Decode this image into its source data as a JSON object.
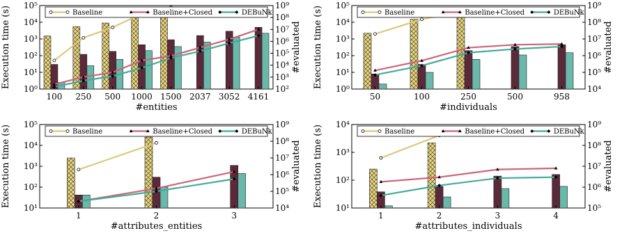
{
  "legend": {
    "baseline": "Baseline",
    "closed": "Baseline+Closed",
    "debunk": "DEBuNk"
  },
  "colors": {
    "baseline_bar": "#e8d98a",
    "baseline_line": "#ddc97a",
    "closed": "#5b2a3a",
    "closed_line": "#cc6677",
    "debunk": "#6ab8aa",
    "debunk_line": "#44aa99"
  },
  "chart_data": [
    {
      "type": "bar",
      "xlabel": "#entities",
      "ylabel": "Execution time (s)",
      "y2label": "#evaluated",
      "categories": [
        "100",
        "250",
        "500",
        "1000",
        "1500",
        "2037",
        "3052",
        "4161"
      ],
      "ylim_exp": [
        0,
        5
      ],
      "y2lim_exp": [
        2,
        9
      ],
      "series_bars": [
        {
          "name": "Baseline",
          "values": [
            1500,
            5500,
            9000,
            25000,
            25000,
            null,
            null,
            null
          ]
        },
        {
          "name": "Baseline+Closed",
          "values": [
            30,
            120,
            180,
            450,
            900,
            1600,
            2900,
            5000
          ]
        },
        {
          "name": "DEBuNk",
          "values": [
            2.5,
            25,
            60,
            200,
            350,
            650,
            1300,
            2200
          ]
        }
      ],
      "series_lines": [
        {
          "name": "Baseline",
          "values": [
            25000,
            2000000,
            15000000,
            200000000,
            700000000,
            null,
            null,
            null
          ]
        },
        {
          "name": "Baseline+Closed",
          "values": [
            250,
            1000,
            2500,
            25000,
            60000,
            300000,
            1500000,
            10000000
          ]
        },
        {
          "name": "DEBuNk",
          "values": [
            150,
            500,
            1200,
            6000,
            40000,
            150000,
            700000,
            3000000
          ]
        }
      ]
    },
    {
      "type": "bar",
      "xlabel": "#individuals",
      "ylabel": "Execution time (s)",
      "y2label": "#evaluated",
      "categories": [
        "50",
        "100",
        "250",
        "500",
        "958"
      ],
      "ylim_exp": [
        0,
        5
      ],
      "y2lim_exp": [
        4,
        9
      ],
      "series_bars": [
        {
          "name": "Baseline",
          "values": [
            2200,
            15000,
            25000,
            null,
            null
          ]
        },
        {
          "name": "Baseline+Closed",
          "values": [
            8,
            30,
            200,
            350,
            450
          ]
        },
        {
          "name": "DEBuNk",
          "values": [
            2,
            10,
            60,
            110,
            150
          ]
        }
      ],
      "series_lines": [
        {
          "name": "Baseline",
          "values": [
            20000000,
            150000000,
            500000000,
            null,
            null
          ]
        },
        {
          "name": "Baseline+Closed",
          "values": [
            130000,
            500000,
            3000000,
            4500000,
            5000000
          ]
        },
        {
          "name": "DEBuNk",
          "values": [
            70000,
            250000,
            1500000,
            2500000,
            3500000
          ]
        }
      ]
    },
    {
      "type": "bar",
      "xlabel": "#attributes_entities",
      "ylabel": "Execution time (s)",
      "y2label": "#evaluated",
      "categories": [
        "1",
        "2",
        "3"
      ],
      "ylim_exp": [
        1,
        5
      ],
      "y2lim_exp": [
        4,
        9
      ],
      "series_bars": [
        {
          "name": "Baseline",
          "values": [
            2500,
            25000,
            null
          ]
        },
        {
          "name": "Baseline+Closed",
          "values": [
            42,
            300,
            1100
          ]
        },
        {
          "name": "DEBuNk",
          "values": [
            42,
            100,
            450
          ]
        }
      ],
      "series_lines": [
        {
          "name": "Baseline",
          "values": [
            2000000,
            80000000,
            null
          ]
        },
        {
          "name": "Baseline+Closed",
          "values": [
            25000,
            150000,
            1500000
          ]
        },
        {
          "name": "DEBuNk",
          "values": [
            25000,
            100000,
            550000
          ]
        }
      ]
    },
    {
      "type": "bar",
      "xlabel": "#attributes_individuals",
      "ylabel": "Execution time (s)",
      "y2label": "#evaluated",
      "categories": [
        "1",
        "2",
        "3",
        "4"
      ],
      "ylim_exp": [
        1,
        4
      ],
      "y2lim_exp": [
        5,
        9
      ],
      "series_bars": [
        {
          "name": "Baseline",
          "values": [
            250,
            2200,
            null,
            null
          ]
        },
        {
          "name": "Baseline+Closed",
          "values": [
            38,
            60,
            140,
            160
          ]
        },
        {
          "name": "DEBuNk",
          "values": [
            12,
            25,
            50,
            60
          ]
        }
      ],
      "series_lines": [
        {
          "name": "Baseline",
          "values": [
            25000000,
            300000000,
            null,
            null
          ]
        },
        {
          "name": "Baseline+Closed",
          "values": [
            1800000,
            3000000,
            7000000,
            8000000
          ]
        },
        {
          "name": "DEBuNk",
          "values": [
            400000,
            1200000,
            2700000,
            3000000
          ]
        }
      ]
    }
  ]
}
